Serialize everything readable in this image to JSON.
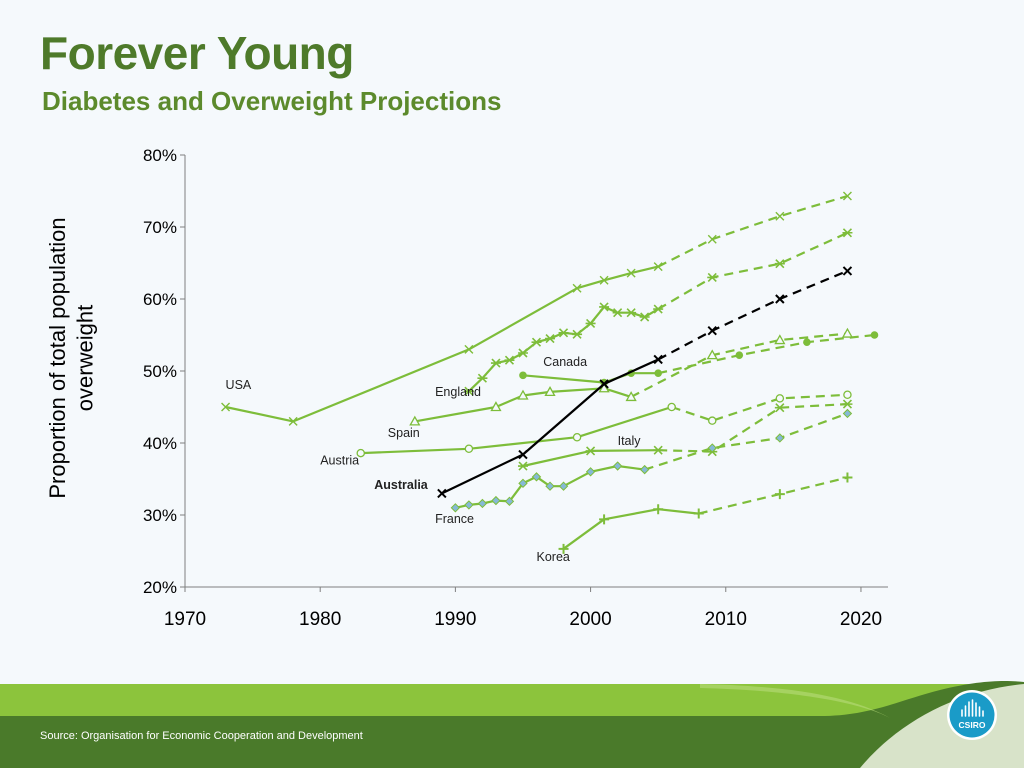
{
  "slide": {
    "title": "Forever Young",
    "subtitle": "Diabetes and Overweight Projections",
    "source": "Source: Organisation for Economic Cooperation and Development",
    "logo_text": "CSIRO"
  },
  "colors": {
    "title": "#4e7a2a",
    "subtitle": "#5c8a2c",
    "series": "#7dbd3a",
    "marker_diamond": "#86b9d6",
    "australia": "#000000",
    "footer_dark": "#4a7a2a",
    "footer_light": "#8cc43c",
    "logo": "#1a9bc8"
  },
  "chart_data": {
    "type": "line",
    "title": "",
    "xlabel": "",
    "ylabel": "Proportion of total population overweight",
    "xlim": [
      1970,
      2022
    ],
    "ylim": [
      20,
      80
    ],
    "x_ticks": [
      "1970",
      "1980",
      "1990",
      "2000",
      "2010",
      "2020"
    ],
    "y_ticks": [
      "20%",
      "30%",
      "40%",
      "50%",
      "60%",
      "70%",
      "80%"
    ],
    "grid": false,
    "legend": "inline labels",
    "series": [
      {
        "name": "USA",
        "marker": "x",
        "actual": [
          [
            1973,
            45.0
          ],
          [
            1978,
            43.0
          ],
          [
            1991,
            53.0
          ],
          [
            1999,
            61.5
          ],
          [
            2001,
            62.6
          ],
          [
            2003,
            63.6
          ],
          [
            2005,
            64.5
          ]
        ],
        "projected": [
          [
            2005,
            64.5
          ],
          [
            2009,
            68.3
          ],
          [
            2014,
            71.5
          ],
          [
            2019,
            74.3
          ]
        ]
      },
      {
        "name": "England",
        "marker": "star",
        "actual": [
          [
            1991,
            47.2
          ],
          [
            1992,
            49.0
          ],
          [
            1993,
            51.1
          ],
          [
            1994,
            51.5
          ],
          [
            1995,
            52.5
          ],
          [
            1996,
            54.0
          ],
          [
            1997,
            54.5
          ],
          [
            1998,
            55.3
          ],
          [
            1999,
            55.1
          ],
          [
            2000,
            56.6
          ],
          [
            2001,
            58.9
          ],
          [
            2002,
            58.1
          ],
          [
            2003,
            58.1
          ],
          [
            2004,
            57.5
          ],
          [
            2005,
            58.6
          ]
        ],
        "projected": [
          [
            2005,
            58.6
          ],
          [
            2009,
            63.0
          ],
          [
            2014,
            64.9
          ],
          [
            2019,
            69.2
          ]
        ]
      },
      {
        "name": "Canada",
        "marker": "circle-filled",
        "actual": [
          [
            1995,
            49.4
          ],
          [
            2001,
            48.4
          ],
          [
            2003,
            49.7
          ],
          [
            2005,
            49.7
          ]
        ],
        "projected": [
          [
            2005,
            49.7
          ],
          [
            2011,
            52.2
          ],
          [
            2016,
            54.0
          ],
          [
            2021,
            55.0
          ]
        ]
      },
      {
        "name": "Spain",
        "marker": "triangle",
        "actual": [
          [
            1987,
            43.0
          ],
          [
            1993,
            45.0
          ],
          [
            1995,
            46.6
          ],
          [
            1997,
            47.1
          ],
          [
            2001,
            47.6
          ],
          [
            2003,
            46.4
          ]
        ],
        "projected": [
          [
            2003,
            46.4
          ],
          [
            2009,
            52.2
          ],
          [
            2014,
            54.3
          ],
          [
            2019,
            55.2
          ]
        ]
      },
      {
        "name": "Austria",
        "marker": "circle-open",
        "actual": [
          [
            1983,
            38.6
          ],
          [
            1991,
            39.2
          ],
          [
            1999,
            40.8
          ],
          [
            2006,
            45.0
          ]
        ],
        "projected": [
          [
            2006,
            45.0
          ],
          [
            2009,
            43.1
          ],
          [
            2014,
            46.2
          ],
          [
            2019,
            46.7
          ]
        ]
      },
      {
        "name": "Italy",
        "marker": "star",
        "actual": [
          [
            1995,
            36.8
          ],
          [
            2000,
            38.9
          ],
          [
            2005,
            39.0
          ]
        ],
        "projected": [
          [
            2005,
            39.0
          ],
          [
            2009,
            38.8
          ],
          [
            2014,
            44.9
          ],
          [
            2019,
            45.4
          ]
        ]
      },
      {
        "name": "France",
        "marker": "diamond",
        "actual": [
          [
            1990,
            31.0
          ],
          [
            1991,
            31.4
          ],
          [
            1992,
            31.6
          ],
          [
            1993,
            32.0
          ],
          [
            1994,
            31.9
          ],
          [
            1995,
            34.4
          ],
          [
            1996,
            35.3
          ],
          [
            1997,
            34.0
          ],
          [
            1998,
            34.0
          ],
          [
            2000,
            36.0
          ],
          [
            2002,
            36.8
          ],
          [
            2004,
            36.3
          ]
        ],
        "projected": [
          [
            2004,
            36.3
          ],
          [
            2009,
            39.3
          ],
          [
            2014,
            40.7
          ],
          [
            2019,
            44.1
          ]
        ]
      },
      {
        "name": "Korea",
        "marker": "plus",
        "actual": [
          [
            1998,
            25.3
          ],
          [
            2001,
            29.4
          ],
          [
            2005,
            30.8
          ],
          [
            2008,
            30.2
          ]
        ],
        "projected": [
          [
            2008,
            30.2
          ],
          [
            2014,
            32.9
          ],
          [
            2019,
            35.2
          ]
        ]
      },
      {
        "name": "Australia",
        "marker": "x-black",
        "actual": [
          [
            1989,
            33.0
          ],
          [
            1995,
            38.4
          ],
          [
            2001,
            48.2
          ],
          [
            2005,
            51.6
          ]
        ],
        "projected": [
          [
            2005,
            51.6
          ],
          [
            2009,
            55.6
          ],
          [
            2014,
            60.0
          ],
          [
            2019,
            63.9
          ]
        ]
      }
    ],
    "labels": [
      {
        "text": "USA",
        "x": 1973,
        "y": 47.5,
        "bold": false
      },
      {
        "text": "England",
        "x": 1988.5,
        "y": 46.5,
        "bold": false
      },
      {
        "text": "Canada",
        "x": 1996.5,
        "y": 50.7,
        "bold": false
      },
      {
        "text": "Spain",
        "x": 1985,
        "y": 40.8,
        "bold": false
      },
      {
        "text": "Italy",
        "x": 2002,
        "y": 39.7,
        "bold": false
      },
      {
        "text": "Austria",
        "x": 1980,
        "y": 37.0,
        "bold": false
      },
      {
        "text": "Australia",
        "x": 1984,
        "y": 33.6,
        "bold": true
      },
      {
        "text": "France",
        "x": 1988.5,
        "y": 28.9,
        "bold": false
      },
      {
        "text": "Korea",
        "x": 1996,
        "y": 23.6,
        "bold": false
      }
    ]
  }
}
